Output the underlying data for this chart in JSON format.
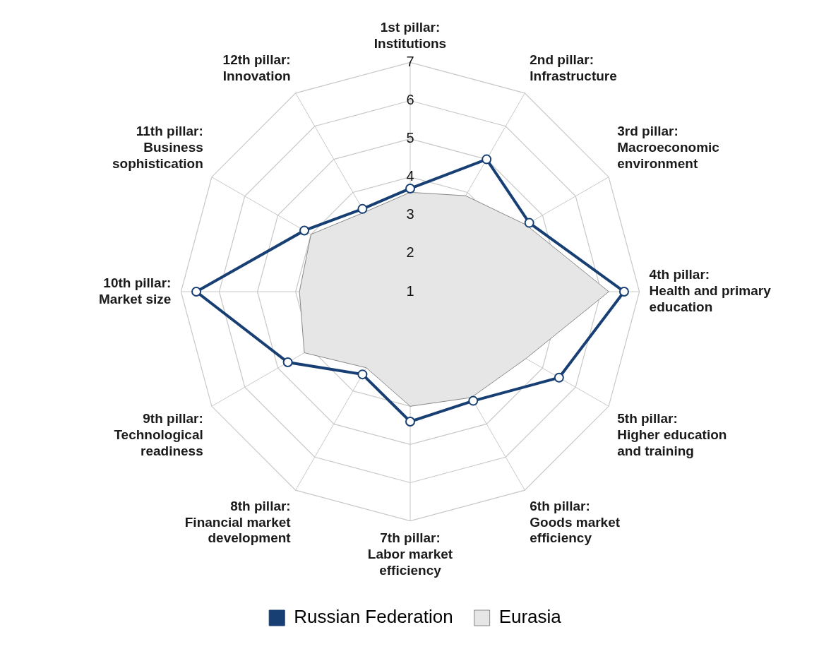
{
  "chart_data": {
    "type": "radar",
    "categories": [
      "1st pillar:\nInstitutions",
      "2nd pillar:\nInfrastructure",
      "3rd pillar:\nMacroeconomic\nenvironment",
      "4th pillar:\nHealth and primary\neducation",
      "5th pillar:\nHigher education\nand training",
      "6th pillar:\nGoods market\nefficiency",
      "7th pillar:\nLabor market\nefficiency",
      "8th pillar:\nFinancial market\ndevelopment",
      "9th pillar:\nTechnological\nreadiness",
      "10th pillar:\nMarket size",
      "11th pillar:\nBusiness\nsophistication",
      "12th pillar:\nInnovation"
    ],
    "series": [
      {
        "name": "Russian Federation",
        "color": "#173f73",
        "marker": "circle",
        "values": [
          3.7,
          5.0,
          4.6,
          6.6,
          5.5,
          4.3,
          4.4,
          3.5,
          4.7,
          6.6,
          4.2,
          3.5
        ]
      },
      {
        "name": "Eurasia",
        "color": "#e6e6e6",
        "type": "area",
        "marker": "none",
        "values": [
          3.6,
          3.9,
          4.5,
          6.2,
          4.5,
          4.2,
          4.0,
          3.3,
          4.2,
          3.9,
          4.0,
          3.4
        ]
      }
    ],
    "ylim": [
      1,
      7
    ],
    "yticks": [
      1,
      2,
      3,
      4,
      5,
      6,
      7
    ],
    "grid": true,
    "legend": "bottom"
  }
}
